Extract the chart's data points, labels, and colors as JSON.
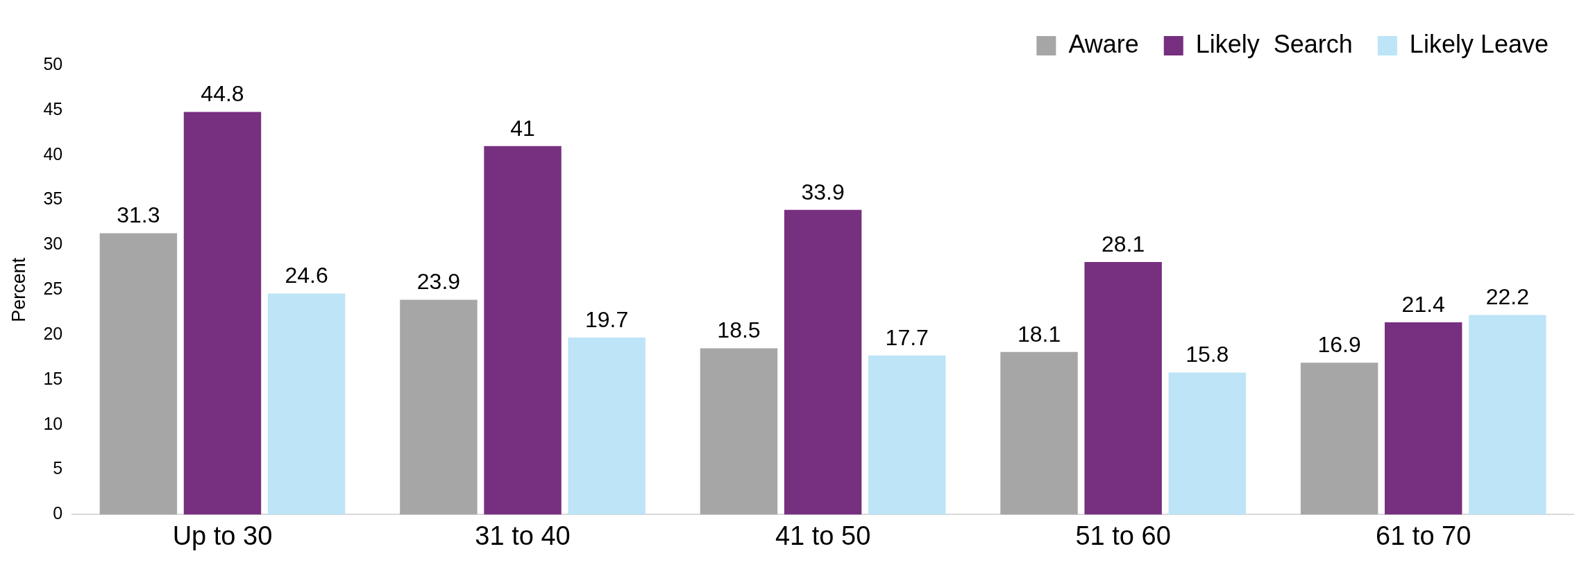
{
  "chart_data": {
    "type": "bar",
    "ylabel": "Percent",
    "categories": [
      "Up to 30",
      "31 to 40",
      "41 to 50",
      "51 to 60",
      "61 to 70"
    ],
    "series": [
      {
        "name": "Aware",
        "color": "#a6a6a6",
        "values": [
          31.3,
          23.9,
          18.5,
          18.1,
          16.9
        ]
      },
      {
        "name": "Likely  Search",
        "color": "#772f7f",
        "values": [
          44.8,
          41,
          33.9,
          28.1,
          21.4
        ]
      },
      {
        "name": "Likely Leave",
        "color": "#bde4f7",
        "values": [
          24.6,
          19.7,
          17.7,
          15.8,
          22.2
        ]
      }
    ],
    "ylim": [
      0,
      50
    ],
    "yticks": [
      0,
      5,
      10,
      15,
      20,
      25,
      30,
      35,
      40,
      45,
      50
    ],
    "grid": false,
    "legend": "top right",
    "data_labels": true
  }
}
